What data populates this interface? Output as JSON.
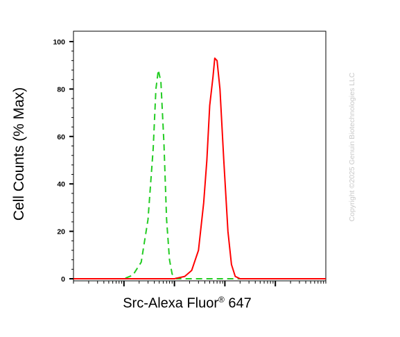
{
  "chart_data": {
    "type": "line",
    "title": "",
    "xlabel_main": "Src-Alexa Fluor",
    "xlabel_reg": "®",
    "xlabel_end": " 647",
    "ylabel": "Cell Counts (% Max)",
    "ylim": [
      0,
      100
    ],
    "yticks": [
      "0",
      "20",
      "40",
      "60",
      "80",
      "100"
    ],
    "x_scale": "log",
    "xlim": [
      0.1,
      10000
    ],
    "grid": false,
    "legend": "none",
    "series": [
      {
        "style": "dashed",
        "color": "#22cc22",
        "points": [
          [
            0.1,
            0
          ],
          [
            1.0,
            0
          ],
          [
            1.5,
            1.5
          ],
          [
            2.2,
            7
          ],
          [
            3.0,
            25
          ],
          [
            3.8,
            55
          ],
          [
            4.3,
            80
          ],
          [
            4.8,
            88
          ],
          [
            5.4,
            83
          ],
          [
            6.2,
            57
          ],
          [
            7.0,
            25
          ],
          [
            8.0,
            8
          ],
          [
            9.0,
            2
          ],
          [
            11,
            0
          ],
          [
            100,
            0
          ],
          [
            10000,
            0
          ]
        ]
      },
      {
        "style": "solid",
        "color": "#ff0000",
        "points": [
          [
            0.1,
            0
          ],
          [
            10,
            0
          ],
          [
            16,
            1
          ],
          [
            22,
            3.5
          ],
          [
            30,
            12
          ],
          [
            38,
            32
          ],
          [
            44,
            50
          ],
          [
            50,
            73
          ],
          [
            58,
            85
          ],
          [
            63,
            93
          ],
          [
            70,
            92
          ],
          [
            80,
            80
          ],
          [
            95,
            50
          ],
          [
            115,
            20
          ],
          [
            135,
            6
          ],
          [
            160,
            1
          ],
          [
            200,
            0
          ],
          [
            10000,
            0
          ]
        ]
      }
    ]
  },
  "watermark": "Copyright ©2025 Genuin Biotechnologies LLC"
}
